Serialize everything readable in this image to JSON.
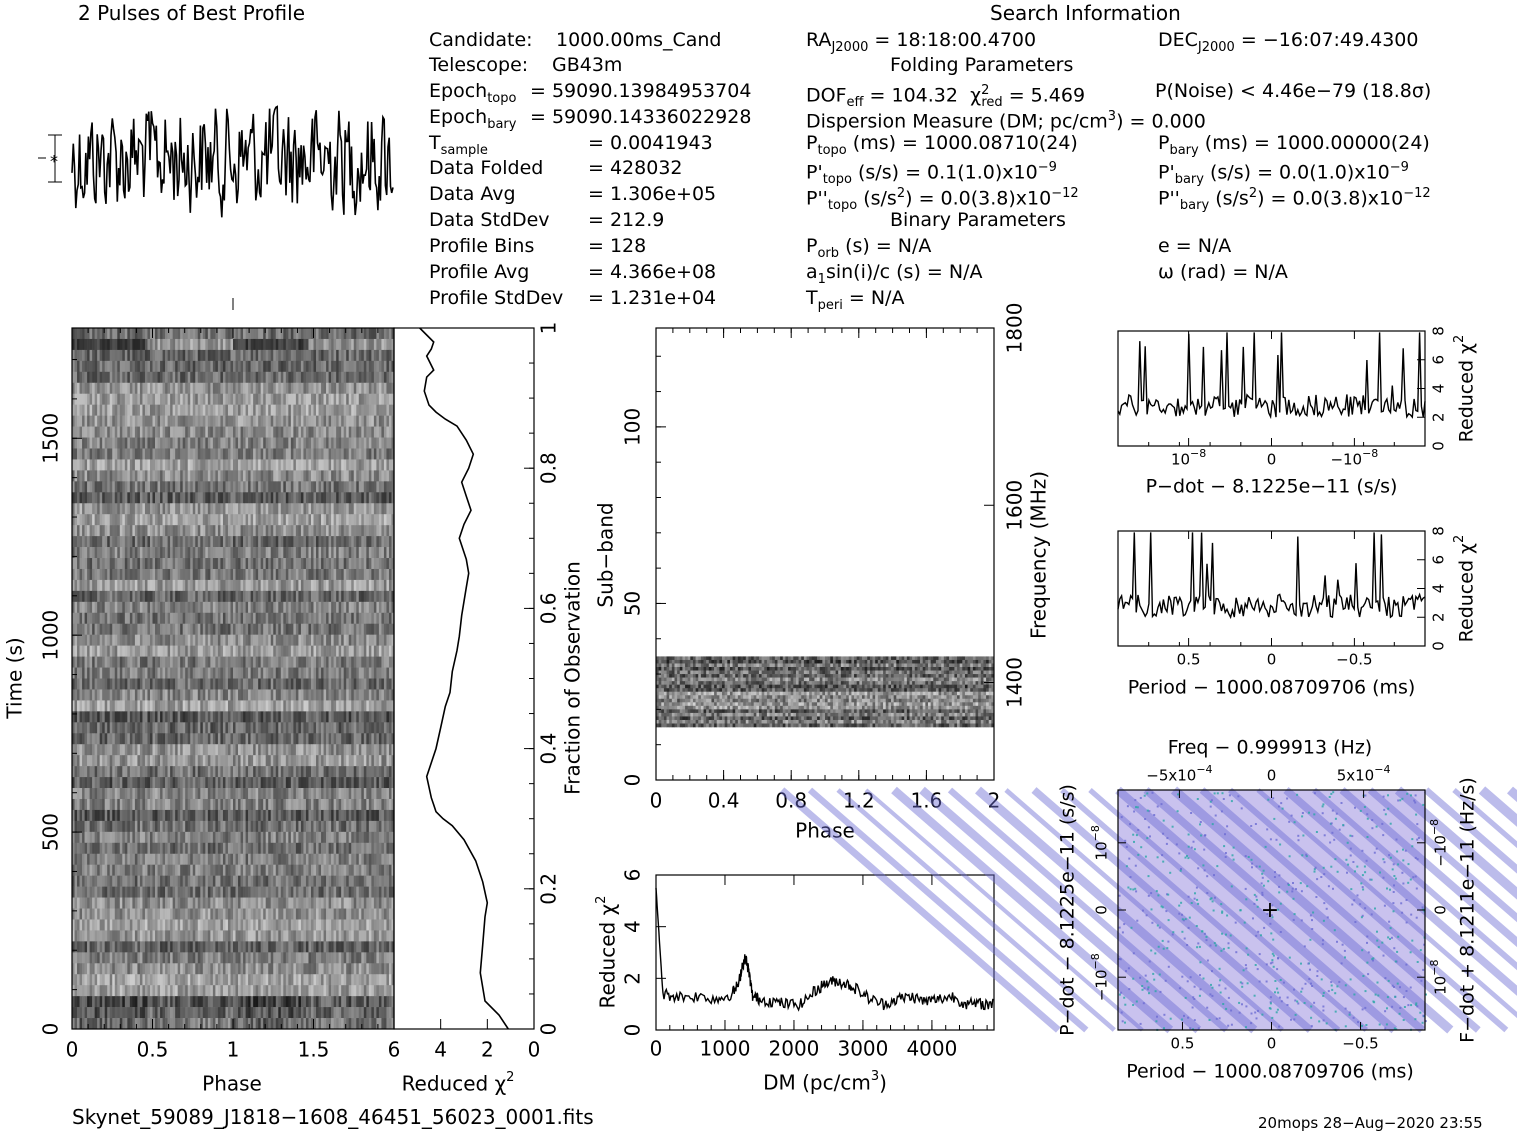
{
  "header": {
    "profile_title": "2 Pulses of Best Profile",
    "search_title": "Search Information",
    "folding_title": "Folding Parameters",
    "binary_title": "Binary Parameters"
  },
  "info_left": [
    {
      "label": "Candidate:",
      "value": "1000.00ms_Cand"
    },
    {
      "label": "Telescope:",
      "value": "GB43m"
    },
    {
      "label": "Epoch",
      "sub": "topo",
      "value": "= 59090.13984953704"
    },
    {
      "label": "Epoch",
      "sub": "bary",
      "value": "= 59090.14336022928"
    },
    {
      "label": "T",
      "sub": "sample",
      "value": "=   0.0041943"
    },
    {
      "label": "Data Folded",
      "value": "=   428032"
    },
    {
      "label": "Data Avg",
      "value": "=   1.306e+05"
    },
    {
      "label": "Data StdDev",
      "value": "=   212.9"
    },
    {
      "label": "Profile Bins",
      "value": "=   128"
    },
    {
      "label": "Profile Avg",
      "value": "=   4.366e+08"
    },
    {
      "label": "Profile StdDev",
      "value": "=   1.231e+04"
    }
  ],
  "info_mid": {
    "ra": {
      "label": "RA",
      "sub": "J2000",
      "value": "= 18:18:00.4700"
    },
    "dec": {
      "label": "DEC",
      "sub": "J2000",
      "value": "= −16:07:49.4300"
    },
    "dof": "DOF",
    "dof_sub": "eff",
    "dof_value": "= 104.32",
    "chi_label": "χ",
    "chi_sup": "2",
    "chi_sub": "red",
    "chi_value": "= 5.469",
    "pnoise": "P(Noise) < 4.46e−79   (18.8σ)",
    "dm_line": "Dispersion Measure (DM; pc/cm",
    "dm_sup": "3",
    "dm_value": ") = 0.000",
    "ptopo_label": "P",
    "ptopo_sub": "topo",
    "ptopo_value": "(ms) =   1000.08710(24)",
    "pbary_label": "P",
    "pbary_sub": "bary",
    "pbary_value": "(ms) =   1000.00000(24)",
    "pdtopo_value": "(s/s) =   0.1(1.0)x10",
    "pdtopo_exp": "−9",
    "pdbary_value": "(s/s) = 0.0(1.0)x10",
    "pdbary_exp": "−9",
    "pddtopo_value": "(s/s",
    "pddtopo_tail": ") = 0.0(3.8)x10",
    "pddtopo_exp": "−12",
    "pddbary_tail": ") = 0.0(3.8)x10",
    "pddbary_exp": "−12",
    "porb_label": "P",
    "porb_sub": "orb",
    "porb_value": "(s) = N/A",
    "e_value": "e = N/A",
    "asini_label": "a",
    "asini_sub": "1",
    "asini_value": "sin(i)/c (s) = N/A",
    "omega_value": "ω (rad) = N/A",
    "tperi_label": "T",
    "tperi_sub": "peri",
    "tperi_value": "= N/A"
  },
  "footer": {
    "filename": "Skynet_59089_J1818−1608_46451_56023_0001.fits",
    "stamp": "20mops 28−Aug−2020 23:55"
  },
  "chart_data": [
    {
      "type": "line",
      "name": "profile",
      "title": "2 Pulses of Best Profile",
      "note": "noisy two-cycle pulse profile"
    },
    {
      "type": "heatmap",
      "name": "time-phase",
      "xlabel": "Phase",
      "ylabel": "Time (s)",
      "xlim": [
        0,
        2
      ],
      "ylim": [
        0,
        1780
      ],
      "x_ticks": [
        "0",
        "0.5",
        "1",
        "1.5"
      ],
      "y_ticks": [
        "0",
        "500",
        "1000",
        "1500"
      ]
    },
    {
      "type": "line",
      "name": "time-chi2",
      "xlabel": "Reduced χ",
      "xlabel_sup": "2",
      "ylabel": "Fraction of Observation",
      "xlim": [
        6,
        0
      ],
      "ylim": [
        0,
        1
      ],
      "x_ticks": [
        "6",
        "4",
        "2",
        "0"
      ],
      "y_ticks": [
        "0",
        "0.2",
        "0.4",
        "0.6",
        "0.8",
        "1"
      ],
      "x": [
        1.1,
        1.5,
        2.1,
        2.3,
        2.2,
        2.1,
        2.0,
        2.2,
        2.5,
        3.0,
        3.5,
        3.9,
        4.2,
        4.3,
        4.4,
        4.6,
        4.2,
        4.0,
        3.8,
        3.6,
        3.5,
        3.3,
        3.2,
        3.1,
        3.0,
        2.9,
        2.8,
        2.9,
        3.2,
        3.0,
        2.7,
        2.9,
        3.1,
        2.8,
        2.6,
        2.9,
        3.3,
        3.8,
        4.2,
        4.5,
        4.7,
        4.6,
        4.3,
        4.6,
        4.4,
        4.3,
        4.6,
        4.9
      ],
      "y": [
        0.0,
        0.02,
        0.04,
        0.08,
        0.12,
        0.16,
        0.18,
        0.21,
        0.24,
        0.27,
        0.29,
        0.3,
        0.31,
        0.32,
        0.33,
        0.36,
        0.4,
        0.43,
        0.46,
        0.48,
        0.51,
        0.54,
        0.56,
        0.59,
        0.61,
        0.63,
        0.65,
        0.67,
        0.7,
        0.72,
        0.74,
        0.76,
        0.78,
        0.8,
        0.82,
        0.84,
        0.86,
        0.87,
        0.88,
        0.89,
        0.91,
        0.93,
        0.94,
        0.96,
        0.97,
        0.98,
        0.99,
        1.0
      ]
    },
    {
      "type": "heatmap",
      "name": "subband-phase",
      "xlabel": "Phase",
      "ylabel": "Sub−band",
      "y2label": "Frequency (MHz)",
      "xlim": [
        0,
        2
      ],
      "ylim": [
        0,
        128
      ],
      "x_ticks": [
        "0",
        "0.4",
        "0.8",
        "1.2",
        "1.6",
        "2"
      ],
      "y_ticks": [
        "0",
        "50",
        "100"
      ],
      "y2_ticks": [
        "1400",
        "1600",
        "1800"
      ],
      "active_subbands": [
        15,
        35
      ]
    },
    {
      "type": "line",
      "name": "dm-chi2",
      "xlabel": "DM (pc/cm",
      "xlabel_sup": "3",
      "xlabel_tail": ")",
      "ylabel": "Reduced χ",
      "ylabel_sup": "2",
      "xlim": [
        0,
        4900
      ],
      "ylim": [
        0,
        6
      ],
      "x_ticks": [
        "0",
        "1000",
        "2000",
        "3000",
        "4000"
      ],
      "y_ticks": [
        "0",
        "2",
        "4",
        "6"
      ],
      "x": [
        0,
        100,
        300,
        600,
        900,
        1100,
        1200,
        1250,
        1300,
        1350,
        1400,
        1500,
        1700,
        1900,
        2100,
        2300,
        2450,
        2600,
        2750,
        2900,
        3100,
        3300,
        3500,
        3700,
        3900,
        4100,
        4300,
        4500,
        4700,
        4900
      ],
      "y": [
        5.5,
        1.4,
        1.3,
        1.3,
        1.2,
        1.4,
        1.8,
        2.5,
        2.8,
        2.2,
        1.3,
        1.2,
        1.1,
        1.0,
        1.0,
        1.5,
        1.8,
        1.9,
        1.8,
        1.6,
        1.2,
        1.0,
        1.2,
        1.3,
        1.1,
        1.2,
        1.3,
        1.0,
        1.0,
        1.0
      ]
    },
    {
      "type": "line",
      "name": "pdot-chi2",
      "xlabel": "P−dot − 8.1225e−11 (s/s)",
      "ylabel": "Reduced χ",
      "ylabel_sup": "2",
      "ylim": [
        0,
        8
      ],
      "x_ticks": [
        "10",
        "0",
        "−10"
      ],
      "x_tick_exp": "−8",
      "y_ticks": [
        "0",
        "2",
        "4",
        "6",
        "8"
      ]
    },
    {
      "type": "line",
      "name": "period-chi2",
      "xlabel": "Period − 1000.08709706 (ms)",
      "ylabel": "Reduced χ",
      "ylabel_sup": "2",
      "ylim": [
        0,
        8
      ],
      "x_ticks": [
        "0.5",
        "0",
        "−0.5"
      ],
      "y_ticks": [
        "0",
        "2",
        "4",
        "6",
        "8"
      ]
    },
    {
      "type": "heatmap",
      "name": "period-pdot",
      "title": "Freq − 0.999913 (Hz)",
      "xlabel": "Period − 1000.08709706 (ms)",
      "ylabel": "P−dot − 8.1225e−11 (s/s)",
      "y2label": "F−dot + 8.1211e−11 (Hz/s)",
      "x_ticks": [
        "0.5",
        "0",
        "−0.5"
      ],
      "top_ticks": [
        "−5x10",
        "0",
        "5x10"
      ],
      "top_tick_exp": "−4",
      "y_ticks": [
        "10",
        "0",
        "−10"
      ],
      "y_tick_exp": "−8",
      "colors": {
        "base": "#c9c2ee",
        "band": "#6b6bd2",
        "accent": "#2aa6a6"
      }
    }
  ]
}
